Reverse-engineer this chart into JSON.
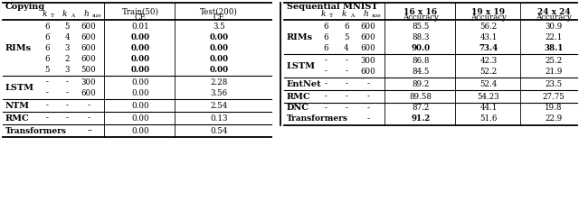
{
  "bg_color": "#ffffff",
  "left": {
    "title": "Copying",
    "header_italic": [
      "k",
      "T",
      "k",
      "A",
      "h",
      "size"
    ],
    "col2_label": "Train(50)\nCE",
    "col3_label": "Test(200)\nCE",
    "rims_rows": [
      [
        "6",
        "5",
        "600",
        "0.01",
        "3.5",
        false,
        false
      ],
      [
        "6",
        "4",
        "600",
        "0.00",
        "0.00",
        true,
        true
      ],
      [
        "6",
        "3",
        "600",
        "0.00",
        "0.00",
        true,
        true
      ],
      [
        "6",
        "2",
        "600",
        "0.00",
        "0.00",
        true,
        true
      ],
      [
        "5",
        "3",
        "500",
        "0.00",
        "0.00",
        true,
        true
      ]
    ],
    "lstm_rows": [
      [
        "-",
        "-",
        "300",
        "0.00",
        "2.28"
      ],
      [
        "-",
        "-",
        "600",
        "0.00",
        "3.56"
      ]
    ],
    "ntm_row": [
      "-",
      "-",
      "-",
      "0.00",
      "2.54"
    ],
    "rmc_row": [
      "-",
      "-",
      "-",
      "0.00",
      "0.13"
    ],
    "trans_row": [
      "-",
      "-",
      "0.00",
      "0.54"
    ]
  },
  "right": {
    "title": "Sequential MNIST",
    "col4_label": "16 x 16\nAccuracy",
    "col5_label": "19 x 19\nAccuracy",
    "col6_label": "24 x 24\nAccuracy",
    "rims_rows": [
      [
        "6",
        "6",
        "600",
        "85.5",
        "56.2",
        "30.9",
        false,
        false,
        false
      ],
      [
        "6",
        "5",
        "600",
        "88.3",
        "43.1",
        "22.1",
        false,
        false,
        false
      ],
      [
        "6",
        "4",
        "600",
        "90.0",
        "73.4",
        "38.1",
        true,
        true,
        true
      ]
    ],
    "lstm_rows": [
      [
        "-",
        "-",
        "300",
        "86.8",
        "42.3",
        "25.2"
      ],
      [
        "-",
        "-",
        "600",
        "84.5",
        "52.2",
        "21.9"
      ]
    ],
    "entnet_row": [
      "-",
      "-",
      "-",
      "89.2",
      "52.4",
      "23.5"
    ],
    "rmc_row": [
      "-",
      "-",
      "-",
      "89.58",
      "54.23",
      "27.75"
    ],
    "dnc_row": [
      "-",
      "-",
      "-",
      "87.2",
      "44.1",
      "19.8"
    ],
    "trans_row": [
      "-",
      "-",
      "91.2",
      "51.6",
      "22.9",
      true
    ]
  }
}
